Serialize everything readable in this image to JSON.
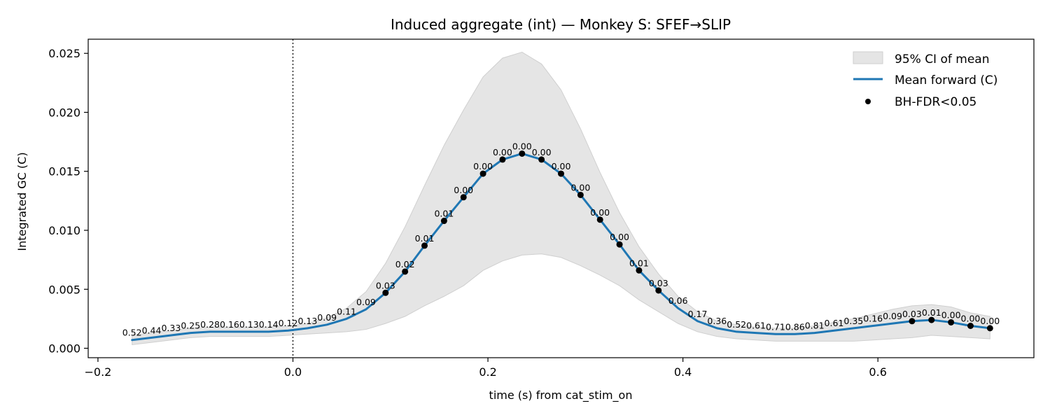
{
  "chart_data": {
    "type": "line",
    "title": "Induced aggregate (int) — Monkey S: SFEF→SLIP",
    "xlabel": "time (s) from cat_stim_on",
    "ylabel": "Integrated GC (C)",
    "xlim": [
      -0.21,
      0.76
    ],
    "ylim": [
      -0.0008,
      0.0262
    ],
    "x_ticks": [
      -0.2,
      0.0,
      0.2,
      0.4,
      0.6
    ],
    "x_tick_labels": [
      "−0.2",
      "0.0",
      "0.2",
      "0.4",
      "0.6"
    ],
    "y_ticks": [
      0.0,
      0.005,
      0.01,
      0.015,
      0.02,
      0.025
    ],
    "y_tick_labels": [
      "0.000",
      "0.005",
      "0.010",
      "0.015",
      "0.020",
      "0.025"
    ],
    "event_line_x": 0.0,
    "grid": false,
    "legend_placement": "top-right",
    "legend": [
      "95% CI of mean",
      "Mean forward (C)",
      "BH-FDR<0.05"
    ],
    "colors": {
      "mean": "#1f77b4",
      "ci_fill": "#e5e5e5",
      "ci_edge": "#cfcfcf",
      "sig": "#000000"
    },
    "x": [
      -0.165,
      -0.145,
      -0.125,
      -0.105,
      -0.085,
      -0.065,
      -0.045,
      -0.025,
      -0.005,
      0.015,
      0.035,
      0.055,
      0.075,
      0.095,
      0.115,
      0.135,
      0.155,
      0.175,
      0.195,
      0.215,
      0.235,
      0.255,
      0.275,
      0.295,
      0.315,
      0.335,
      0.355,
      0.375,
      0.395,
      0.415,
      0.435,
      0.455,
      0.475,
      0.495,
      0.515,
      0.535,
      0.555,
      0.575,
      0.595,
      0.615,
      0.635,
      0.655,
      0.675,
      0.695,
      0.715
    ],
    "mean": [
      0.0007,
      0.0009,
      0.0011,
      0.0013,
      0.0014,
      0.0014,
      0.0014,
      0.0014,
      0.0015,
      0.0017,
      0.002,
      0.0025,
      0.0033,
      0.0047,
      0.0065,
      0.0087,
      0.0108,
      0.0128,
      0.0148,
      0.016,
      0.0165,
      0.016,
      0.0148,
      0.013,
      0.0109,
      0.0088,
      0.0066,
      0.0049,
      0.0034,
      0.0023,
      0.0017,
      0.0014,
      0.0013,
      0.0012,
      0.0012,
      0.0013,
      0.0015,
      0.0017,
      0.0019,
      0.0021,
      0.0023,
      0.0024,
      0.0022,
      0.0019,
      0.0017
    ],
    "ci_upper": [
      0.0011,
      0.0013,
      0.0015,
      0.0017,
      0.0018,
      0.0018,
      0.0018,
      0.0018,
      0.0019,
      0.0021,
      0.0026,
      0.0034,
      0.0048,
      0.0072,
      0.0103,
      0.0138,
      0.0172,
      0.0202,
      0.023,
      0.0246,
      0.0251,
      0.0241,
      0.0219,
      0.0186,
      0.0149,
      0.0115,
      0.0086,
      0.0063,
      0.0044,
      0.0031,
      0.0023,
      0.002,
      0.0018,
      0.0017,
      0.0017,
      0.0019,
      0.0022,
      0.0025,
      0.0029,
      0.0033,
      0.0036,
      0.0037,
      0.0035,
      0.003,
      0.0027
    ],
    "ci_lower": [
      0.0003,
      0.0005,
      0.0007,
      0.0009,
      0.001,
      0.001,
      0.001,
      0.001,
      0.0011,
      0.0012,
      0.0013,
      0.0014,
      0.0016,
      0.0021,
      0.0027,
      0.0036,
      0.0044,
      0.0053,
      0.0066,
      0.0074,
      0.0079,
      0.008,
      0.0077,
      0.007,
      0.0062,
      0.0053,
      0.0041,
      0.0031,
      0.0021,
      0.0014,
      0.001,
      0.0008,
      0.0007,
      0.0006,
      0.0006,
      0.0006,
      0.0006,
      0.0006,
      0.0007,
      0.0008,
      0.0009,
      0.0011,
      0.001,
      0.0009,
      0.0008
    ],
    "p_values": [
      "0.52",
      "0.44",
      "0.33",
      "0.25",
      "0.28",
      "0.16",
      "0.13",
      "0.14",
      "0.12",
      "0.13",
      "0.09",
      "0.11",
      "0.09",
      "0.03",
      "0.02",
      "0.01",
      "0.01",
      "0.00",
      "0.00",
      "0.00",
      "0.00",
      "0.00",
      "0.00",
      "0.00",
      "0.00",
      "0.00",
      "0.01",
      "0.03",
      "0.06",
      "0.17",
      "0.36",
      "0.52",
      "0.61",
      "0.71",
      "0.86",
      "0.81",
      "0.61",
      "0.35",
      "0.16",
      "0.09",
      "0.03",
      "0.01",
      "0.00",
      "0.00",
      "0.00"
    ],
    "significant": [
      false,
      false,
      false,
      false,
      false,
      false,
      false,
      false,
      false,
      false,
      false,
      false,
      false,
      true,
      true,
      true,
      true,
      true,
      true,
      true,
      true,
      true,
      true,
      true,
      true,
      true,
      true,
      true,
      false,
      false,
      false,
      false,
      false,
      false,
      false,
      false,
      false,
      false,
      false,
      false,
      true,
      true,
      true,
      true,
      true
    ]
  }
}
